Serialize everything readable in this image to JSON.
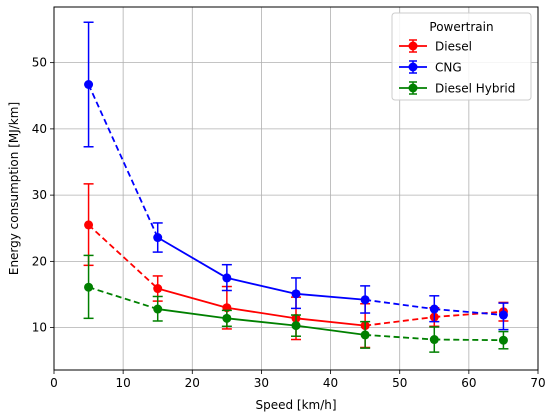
{
  "chart_data": {
    "type": "line",
    "xlabel": "Speed [km/h]",
    "ylabel": "Energy consumption [MJ/km]",
    "xlim": [
      0,
      70
    ],
    "ylim": [
      3.6,
      58.4
    ],
    "xticks": [
      0,
      10,
      20,
      30,
      40,
      50,
      60,
      70
    ],
    "yticks": [
      10,
      20,
      30,
      40,
      50
    ],
    "grid": true,
    "legend": {
      "title": "Powertrain",
      "placement": "top-right",
      "entries": [
        "Diesel",
        "CNG",
        "Diesel Hybrid"
      ]
    },
    "x": [
      5,
      15,
      25,
      35,
      45,
      55,
      65
    ],
    "series": [
      {
        "name": "Diesel",
        "color": "#ff0000",
        "values": [
          25.5,
          15.9,
          13.0,
          11.4,
          10.3,
          11.6,
          12.4
        ],
        "err_lower": [
          19.4,
          14.0,
          9.8,
          8.2,
          7.0,
          10.2,
          11.0
        ],
        "err_upper": [
          31.7,
          17.8,
          16.2,
          14.6,
          13.6,
          13.0,
          13.8
        ]
      },
      {
        "name": "CNG",
        "color": "#0000ff",
        "values": [
          46.7,
          23.6,
          17.5,
          15.1,
          14.2,
          12.8,
          11.9
        ],
        "err_lower": [
          37.3,
          21.4,
          15.6,
          12.9,
          12.2,
          10.9,
          9.7
        ],
        "err_upper": [
          56.1,
          25.8,
          19.5,
          17.5,
          16.3,
          14.8,
          13.7
        ]
      },
      {
        "name": "Diesel Hybrid",
        "color": "#008000",
        "values": [
          16.1,
          12.8,
          11.4,
          10.3,
          8.9,
          8.2,
          8.1
        ],
        "err_lower": [
          11.4,
          11.0,
          10.2,
          8.7,
          6.9,
          6.3,
          6.8
        ],
        "err_upper": [
          20.9,
          14.7,
          12.6,
          11.9,
          10.9,
          10.1,
          9.4
        ]
      }
    ],
    "dashed_segments": [
      [
        0,
        1
      ],
      [
        4,
        5
      ],
      [
        5,
        6
      ]
    ]
  }
}
